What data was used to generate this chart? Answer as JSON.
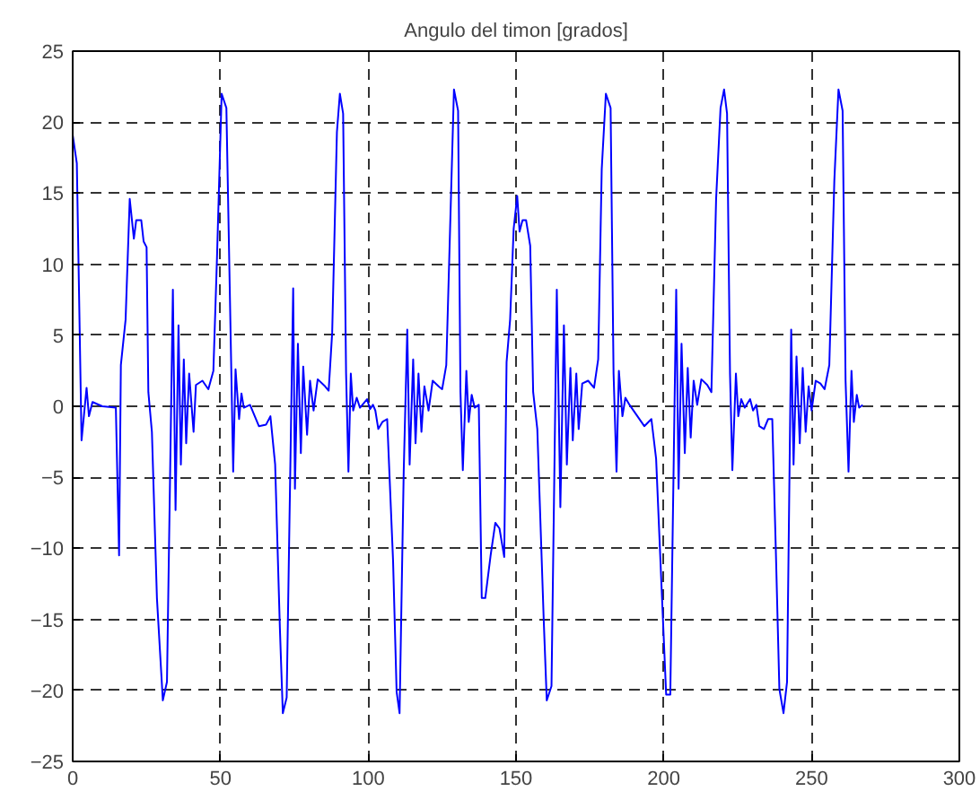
{
  "chart_data": {
    "type": "line",
    "title": "Angulo del timon [grados]",
    "xlim": [
      0,
      300
    ],
    "xticks": [
      0,
      50,
      100,
      150,
      200,
      250,
      300
    ],
    "ylim": [
      -25,
      25
    ],
    "yticks": [
      -25,
      -20,
      -15,
      -10,
      -5,
      0,
      5,
      10,
      15,
      20,
      25
    ],
    "grid": true,
    "series": [
      {
        "color": "#0000ff",
        "x": [
          0,
          1.4,
          3,
          4.7,
          5.5,
          6.7,
          10,
          14.6,
          15.7,
          16.3,
          17.9,
          19.3,
          20.7,
          21.5,
          23.2,
          24,
          25,
          25.6,
          26.8,
          28.5,
          30.5,
          31.9,
          33.9,
          34.8,
          35.8,
          36.6,
          37.6,
          38.4,
          39.4,
          40.9,
          41.7,
          43.9,
          45.9,
          47.6,
          48.8,
          50.4,
          52,
          54.3,
          55.1,
          56.3,
          57.1,
          57.9,
          60,
          63,
          65.4,
          66.9,
          68.5,
          70.1,
          71.1,
          72.4,
          74.6,
          75.2,
          76.2,
          77.2,
          78,
          79.3,
          80.3,
          81.5,
          82.9,
          85.4,
          86.6,
          87.8,
          89.4,
          90.4,
          91.5,
          92.5,
          93.3,
          94.1,
          94.9,
          96.1,
          97.2,
          99.6,
          100.6,
          101.6,
          102.4,
          103.4,
          104.8,
          106.4,
          108.4,
          109.6,
          110.6,
          112,
          113.2,
          114,
          115.2,
          116,
          117,
          118,
          119,
          120.4,
          121.8,
          123.8,
          125,
          126.4,
          127.8,
          129,
          130.4,
          131.2,
          132,
          133.2,
          134,
          135,
          136,
          137.4,
          138.4,
          139.6,
          141.4,
          143,
          144.4,
          146,
          146.8,
          148,
          149.2,
          150.4,
          151.2,
          152.2,
          153.4,
          154.8,
          155.8,
          157.2,
          159.4,
          160.4,
          162,
          163.8,
          165,
          166.2,
          167.2,
          168.4,
          169.2,
          170.4,
          171.2,
          172.4,
          174.4,
          176.4,
          177.8,
          179,
          180.4,
          182,
          183,
          184,
          184.8,
          186,
          187,
          188.4,
          190.4,
          193.4,
          195.8,
          197.4,
          199.4,
          200.8,
          202.2,
          204.2,
          205,
          206,
          207.1,
          208.1,
          209.1,
          210.1,
          211.3,
          212.7,
          214.7,
          216.1,
          217.7,
          219.2,
          220.4,
          221.4,
          222.4,
          223.2,
          224.4,
          225.2,
          226.2,
          227.4,
          229.2,
          230.2,
          231.3,
          232.3,
          233.9,
          235.3,
          236.7,
          237.9,
          239.1,
          240.5,
          241.7,
          243.1,
          243.9,
          244.9,
          246,
          247,
          248,
          249,
          250,
          251.4,
          253,
          254.4,
          256,
          257.7,
          259.1,
          260.5,
          261.5,
          262.5,
          263.5,
          264.3,
          265.3,
          266.1,
          267.3
        ],
        "values": [
          19.1,
          17.1,
          -2.4,
          1.3,
          -0.7,
          0.3,
          0,
          -0.1,
          -10.5,
          2.9,
          6.1,
          14.6,
          11.8,
          13.1,
          13.1,
          11.6,
          11.2,
          1.0,
          -1.8,
          -13.5,
          -20.7,
          -19.4,
          8.2,
          -7.3,
          5.7,
          -4.1,
          3.3,
          -2.6,
          2.3,
          -1.8,
          1.5,
          1.8,
          1.2,
          2.5,
          10.3,
          22.0,
          21,
          -4.6,
          2.6,
          -0.9,
          0.9,
          -0.1,
          0.1,
          -1.4,
          -1.3,
          -0.7,
          -4.1,
          -15.6,
          -21.6,
          -20.5,
          8.3,
          -5.8,
          4.4,
          -3.3,
          2.8,
          -2.0,
          1.8,
          -0.3,
          1.9,
          1.4,
          1.1,
          5.2,
          19.3,
          22,
          20.6,
          2.3,
          -4.6,
          2.3,
          -0.3,
          0.6,
          -0.1,
          0.5,
          -0.2,
          0.1,
          -0.3,
          -1.6,
          -1.1,
          -0.9,
          -10.9,
          -20.1,
          -21.6,
          -4.6,
          5.4,
          -4.1,
          3.3,
          -2.6,
          2.3,
          -1.8,
          1.4,
          -0.3,
          1.8,
          1.4,
          1.2,
          2.9,
          13.3,
          22.3,
          20.8,
          1.0,
          -4.5,
          2.5,
          -1.1,
          0.8,
          -0.1,
          0.1,
          -13.5,
          -13.5,
          -10.5,
          -8.2,
          -8.6,
          -10.6,
          3.1,
          6.1,
          12.5,
          14.8,
          12.3,
          13.1,
          13.1,
          11.3,
          1.0,
          -1.6,
          -15.2,
          -20.7,
          -19.7,
          8.2,
          -7.1,
          5.7,
          -4.1,
          2.7,
          -2.4,
          2.3,
          -1.6,
          1.6,
          1.8,
          1.3,
          3.3,
          16.7,
          22.0,
          21,
          2.3,
          -4.6,
          2.5,
          -0.7,
          0.6,
          0.1,
          -0.5,
          -1.4,
          -0.9,
          -3.7,
          -13.5,
          -20.3,
          -20.3,
          8.2,
          -5.8,
          4.4,
          -3.3,
          2.7,
          -2.2,
          1.8,
          0.1,
          1.9,
          1.5,
          1.0,
          14.6,
          21,
          22.3,
          20.6,
          2.3,
          -4.5,
          2.3,
          -0.7,
          0.5,
          -0.1,
          0.5,
          -0.3,
          0.1,
          -1.4,
          -1.6,
          -0.9,
          -0.9,
          -10.1,
          -19.9,
          -21.6,
          -19.4,
          5.4,
          -4.1,
          3.5,
          -2.6,
          2.7,
          -1.8,
          1.4,
          -0.3,
          1.8,
          1.6,
          1.2,
          2.9,
          15.9,
          22.3,
          20.8,
          1.8,
          -4.6,
          2.5,
          -1.1,
          0.8,
          -0.1,
          0.1
        ]
      }
    ]
  }
}
